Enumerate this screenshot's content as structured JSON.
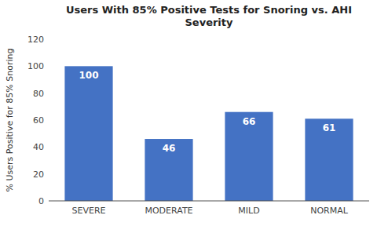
{
  "chart_data": {
    "type": "bar",
    "title": "Users With 85% Positive Tests for Snoring vs. AHI\nSeverity",
    "ylabel": "% Users Positive for 85% Snoring",
    "categories": [
      "SEVERE",
      "MODERATE",
      "MILD",
      "NORMAL"
    ],
    "values": [
      100,
      46,
      66,
      61
    ],
    "color": "#4472C4",
    "ylim": [
      0,
      120
    ],
    "yticks": [
      0,
      20,
      40,
      60,
      80,
      100,
      120
    ],
    "grid": false,
    "data_labels": true
  }
}
